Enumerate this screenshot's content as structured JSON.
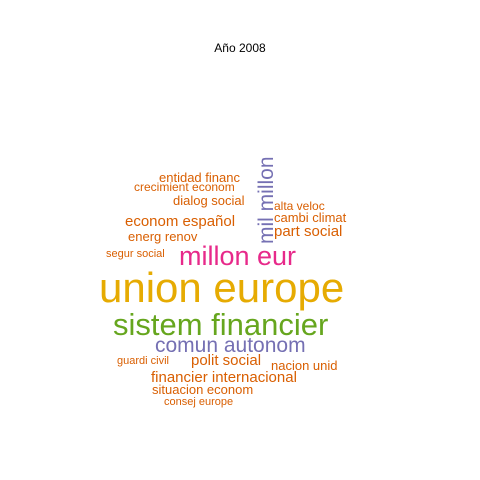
{
  "title": "Año 2008",
  "colors": {
    "orange": "#d95f02",
    "gold": "#e6ab02",
    "pink": "#e7298a",
    "green": "#66a61e",
    "purple": "#7570b3"
  },
  "words": {
    "entidad_financ": "entidad financ",
    "crecimient_econom": "crecimient econom",
    "dialog_social": "dialog social",
    "alta_veloc": "alta veloc",
    "cambi_climat": "cambi climat",
    "econom_espanol": "econom español",
    "part_social": "part social",
    "energ_renov": "energ renov",
    "segur_social": "segur social",
    "millon_eur": "millon eur",
    "union_europe": "union europe",
    "sistem_financier": "sistem financier",
    "comun_autonom": "comun autonom",
    "guardi_civil": "guardi civil",
    "polit_social": "polit social",
    "nacion_unid": "nacion unid",
    "financier_internacional": "financier internacional",
    "situacion_econom": "situacion econom",
    "consej_europe": "consej europe",
    "mil_millon": "mil millon"
  }
}
